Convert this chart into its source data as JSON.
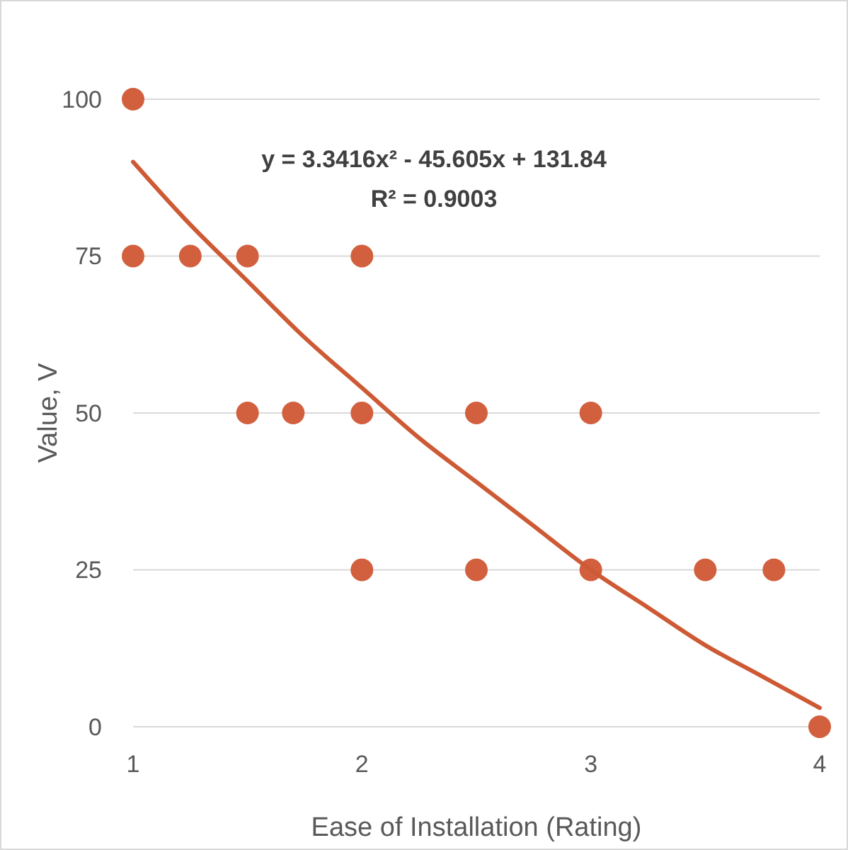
{
  "chart_data": {
    "type": "scatter",
    "xlabel": "Ease of Installation (Rating)",
    "ylabel": "Value, V",
    "annotations": [
      "y = 3.3416x² - 45.605x + 131.84",
      "R² = 0.9003"
    ],
    "xlim": [
      1,
      4
    ],
    "xticks": [
      1,
      2,
      3,
      4
    ],
    "ylim": [
      0,
      100
    ],
    "yticks": [
      0,
      25,
      50,
      75,
      100
    ],
    "grid": "y",
    "series": [
      {
        "color": "#d2603e",
        "marker": "circle",
        "x": [
          1,
          1,
          1.25,
          1.5,
          2,
          1.5,
          1.7,
          2,
          2.5,
          3,
          2,
          2.5,
          3,
          3.5,
          3.8,
          4
        ],
        "values": [
          100,
          75,
          75,
          75,
          75,
          50,
          50,
          50,
          50,
          50,
          25,
          25,
          25,
          25,
          25,
          0
        ]
      },
      {
        "type": "line",
        "color": "#cd5a34",
        "marker": "none",
        "line_style": "solid",
        "x": [
          1,
          1.25,
          1.5,
          1.75,
          2,
          2.25,
          2.5,
          2.75,
          3,
          3.25,
          3.5,
          3.75,
          4
        ],
        "values": [
          90,
          80,
          71,
          62,
          54,
          46,
          39,
          32,
          25,
          19,
          13,
          8,
          3
        ]
      }
    ]
  }
}
